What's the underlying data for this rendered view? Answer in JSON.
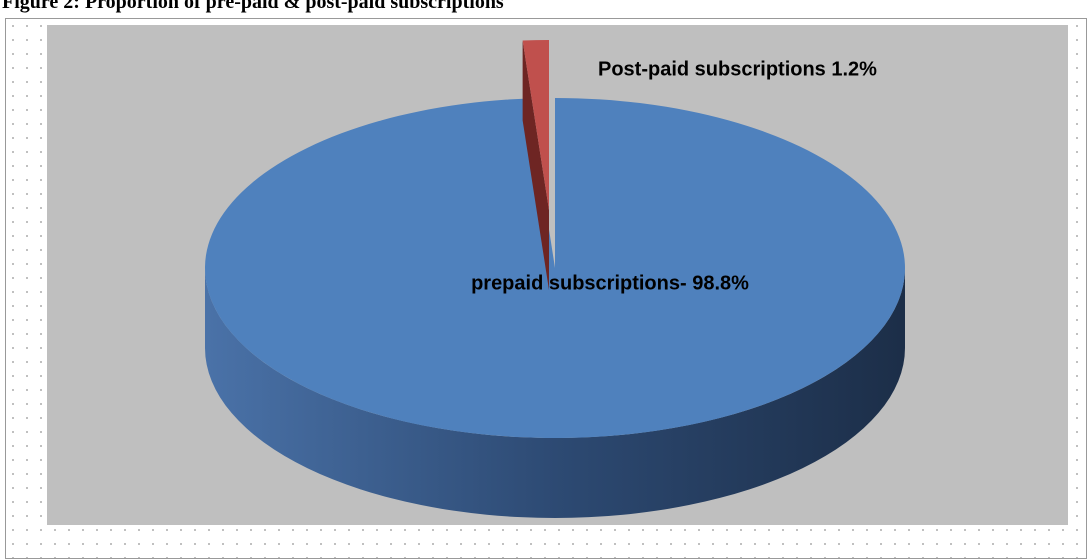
{
  "chart_data": {
    "type": "pie3d",
    "title": "Figure 2: Proportion of pre-paid & post-paid subscriptions",
    "categories": [
      "prepaid subscriptions- 98.8%",
      "Post-paid subscriptions 1.2%"
    ],
    "values": [
      98.8,
      1.2
    ],
    "colors": [
      "#4f81bd",
      "#c0504d"
    ]
  }
}
